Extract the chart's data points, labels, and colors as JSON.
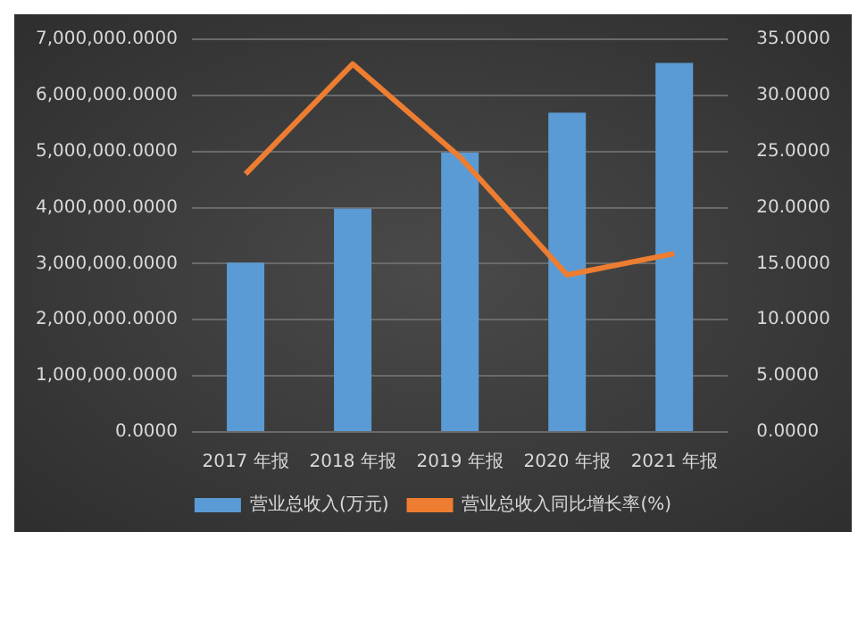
{
  "chart_data": {
    "type": "bar",
    "categories": [
      "2017 年报",
      "2018 年报",
      "2019 年报",
      "2020 年报",
      "2021 年报"
    ],
    "series": [
      {
        "name": "营业总收入(万元)",
        "color": "#5b9bd5",
        "values": [
          3020000,
          3980000,
          4980000,
          5690000,
          6580000
        ]
      },
      {
        "name": "营业总收入同比增长率(%)",
        "type": "line",
        "axis": "y2",
        "color": "#ed7d31",
        "values": [
          23.0,
          32.8,
          24.5,
          14.0,
          15.9
        ]
      }
    ],
    "ylim": [
      0,
      7000000
    ],
    "yticks": [
      {
        "value": 0,
        "label": "0.0000"
      },
      {
        "value": 1000000,
        "label": "1,000,000.0000"
      },
      {
        "value": 2000000,
        "label": "2,000,000.0000"
      },
      {
        "value": 3000000,
        "label": "3,000,000.0000"
      },
      {
        "value": 4000000,
        "label": "4,000,000.0000"
      },
      {
        "value": 5000000,
        "label": "5,000,000.0000"
      },
      {
        "value": 6000000,
        "label": "6,000,000.0000"
      },
      {
        "value": 7000000,
        "label": "7,000,000.0000"
      }
    ],
    "y2lim": [
      0,
      35
    ],
    "y2ticks": [
      {
        "value": 0,
        "label": "0.0000"
      },
      {
        "value": 5,
        "label": "5.0000"
      },
      {
        "value": 10,
        "label": "10.0000"
      },
      {
        "value": 15,
        "label": "15.0000"
      },
      {
        "value": 20,
        "label": "20.0000"
      },
      {
        "value": 25,
        "label": "25.0000"
      },
      {
        "value": 30,
        "label": "30.0000"
      },
      {
        "value": 35,
        "label": "35.0000"
      }
    ],
    "grid": "y",
    "legend": "bottom",
    "marker": "none"
  }
}
